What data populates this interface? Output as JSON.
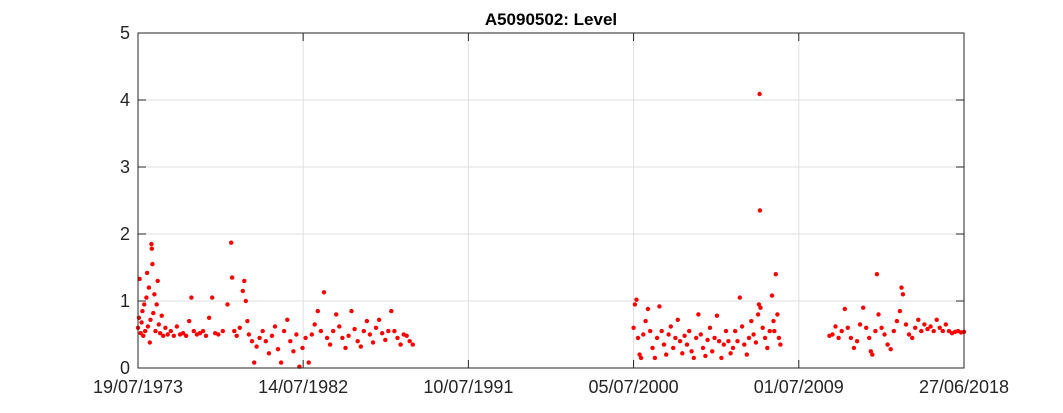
{
  "chart_data": {
    "type": "scatter",
    "title": "A5090502: Level",
    "xlabel": "",
    "ylabel": "",
    "x_ticks": [
      "19/07/1973",
      "14/07/1982",
      "10/07/1991",
      "05/07/2000",
      "01/07/2009",
      "27/06/2018"
    ],
    "x_range": [
      "19/07/1973",
      "27/06/2018"
    ],
    "ylim": [
      0,
      5
    ],
    "y_ticks": [
      0,
      1,
      2,
      3,
      4,
      5
    ],
    "grid": true,
    "marker_color": "#ff0000",
    "gridline_color": "#dfdfdf",
    "series": [
      {
        "points": [
          [
            "1973-07-19",
            0.6
          ],
          [
            "1973-08-05",
            0.75
          ],
          [
            "1973-08-20",
            1.33
          ],
          [
            "1973-09-10",
            0.52
          ],
          [
            "1973-09-28",
            0.68
          ],
          [
            "1973-10-15",
            0.85
          ],
          [
            "1973-11-01",
            0.48
          ],
          [
            "1973-11-20",
            0.95
          ],
          [
            "1973-12-10",
            0.55
          ],
          [
            "1974-01-01",
            1.05
          ],
          [
            "1974-01-15",
            1.42
          ],
          [
            "1974-02-01",
            0.62
          ],
          [
            "1974-02-20",
            1.2
          ],
          [
            "1974-03-10",
            0.38
          ],
          [
            "1974-03-25",
            0.72
          ],
          [
            "1974-04-12",
            1.85
          ],
          [
            "1974-04-20",
            1.78
          ],
          [
            "1974-05-01",
            1.55
          ],
          [
            "1974-05-20",
            0.82
          ],
          [
            "1974-06-10",
            1.1
          ],
          [
            "1974-07-01",
            0.55
          ],
          [
            "1974-07-25",
            0.95
          ],
          [
            "1974-08-15",
            1.3
          ],
          [
            "1974-09-05",
            0.65
          ],
          [
            "1974-10-01",
            0.52
          ],
          [
            "1974-11-01",
            0.78
          ],
          [
            "1974-12-01",
            0.48
          ],
          [
            "1975-01-15",
            0.6
          ],
          [
            "1975-03-01",
            0.5
          ],
          [
            "1975-05-01",
            0.55
          ],
          [
            "1975-07-01",
            0.48
          ],
          [
            "1975-09-01",
            0.62
          ],
          [
            "1975-11-01",
            0.5
          ],
          [
            "1976-01-01",
            0.52
          ],
          [
            "1976-03-01",
            0.48
          ],
          [
            "1976-05-01",
            0.7
          ],
          [
            "1976-06-15",
            1.05
          ],
          [
            "1976-08-01",
            0.55
          ],
          [
            "1976-10-01",
            0.5
          ],
          [
            "1976-12-01",
            0.52
          ],
          [
            "1977-02-01",
            0.55
          ],
          [
            "1977-04-01",
            0.48
          ],
          [
            "1977-06-01",
            0.75
          ],
          [
            "1977-08-01",
            1.05
          ],
          [
            "1977-10-01",
            0.52
          ],
          [
            "1977-12-01",
            0.5
          ],
          [
            "1978-03-01",
            0.55
          ],
          [
            "1978-06-01",
            0.95
          ],
          [
            "1978-08-15",
            1.87
          ],
          [
            "1978-09-01",
            1.35
          ],
          [
            "1978-10-15",
            0.55
          ],
          [
            "1978-12-01",
            0.48
          ],
          [
            "1979-02-01",
            0.6
          ],
          [
            "1979-04-01",
            1.15
          ],
          [
            "1979-05-01",
            1.3
          ],
          [
            "1979-06-01",
            1.0
          ],
          [
            "1979-07-01",
            0.7
          ],
          [
            "1979-08-01",
            0.5
          ],
          [
            "1979-10-01",
            0.4
          ],
          [
            "1979-11-15",
            0.08
          ],
          [
            "1980-01-01",
            0.32
          ],
          [
            "1980-03-01",
            0.45
          ],
          [
            "1980-05-01",
            0.55
          ],
          [
            "1980-07-01",
            0.4
          ],
          [
            "1980-09-01",
            0.22
          ],
          [
            "1980-11-01",
            0.48
          ],
          [
            "1981-01-01",
            0.62
          ],
          [
            "1981-03-01",
            0.28
          ],
          [
            "1981-05-01",
            0.08
          ],
          [
            "1981-07-01",
            0.55
          ],
          [
            "1981-09-01",
            0.72
          ],
          [
            "1981-11-01",
            0.4
          ],
          [
            "1982-01-01",
            0.25
          ],
          [
            "1982-03-01",
            0.5
          ],
          [
            "1982-05-01",
            0.02
          ],
          [
            "1982-07-01",
            0.3
          ],
          [
            "1982-09-01",
            0.45
          ],
          [
            "1982-11-01",
            0.08
          ],
          [
            "1983-01-01",
            0.5
          ],
          [
            "1983-03-01",
            0.65
          ],
          [
            "1983-05-01",
            0.85
          ],
          [
            "1983-07-01",
            0.55
          ],
          [
            "1983-09-01",
            1.13
          ],
          [
            "1983-11-01",
            0.45
          ],
          [
            "1984-01-01",
            0.35
          ],
          [
            "1984-03-01",
            0.55
          ],
          [
            "1984-05-01",
            0.8
          ],
          [
            "1984-07-01",
            0.62
          ],
          [
            "1984-09-01",
            0.45
          ],
          [
            "1984-11-01",
            0.3
          ],
          [
            "1985-01-01",
            0.48
          ],
          [
            "1985-03-01",
            0.85
          ],
          [
            "1985-05-01",
            0.58
          ],
          [
            "1985-07-01",
            0.4
          ],
          [
            "1985-09-01",
            0.32
          ],
          [
            "1985-11-01",
            0.55
          ],
          [
            "1986-01-01",
            0.7
          ],
          [
            "1986-03-01",
            0.5
          ],
          [
            "1986-05-01",
            0.38
          ],
          [
            "1986-07-01",
            0.6
          ],
          [
            "1986-09-01",
            0.72
          ],
          [
            "1986-11-01",
            0.52
          ],
          [
            "1987-01-01",
            0.42
          ],
          [
            "1987-03-01",
            0.55
          ],
          [
            "1987-05-01",
            0.85
          ],
          [
            "1987-07-01",
            0.55
          ],
          [
            "1987-09-01",
            0.45
          ],
          [
            "1987-11-01",
            0.35
          ],
          [
            "1988-01-01",
            0.5
          ],
          [
            "1988-03-01",
            0.48
          ],
          [
            "1988-05-01",
            0.4
          ],
          [
            "1988-07-01",
            0.35
          ],
          [
            "2000-07-05",
            0.6
          ],
          [
            "2000-08-01",
            0.95
          ],
          [
            "2000-09-01",
            1.02
          ],
          [
            "2000-10-01",
            0.45
          ],
          [
            "2000-11-01",
            0.2
          ],
          [
            "2000-12-01",
            0.15
          ],
          [
            "2001-01-15",
            0.5
          ],
          [
            "2001-03-01",
            0.7
          ],
          [
            "2001-04-15",
            0.88
          ],
          [
            "2001-06-01",
            0.55
          ],
          [
            "2001-07-15",
            0.3
          ],
          [
            "2001-09-01",
            0.15
          ],
          [
            "2001-10-15",
            0.45
          ],
          [
            "2001-12-01",
            0.92
          ],
          [
            "2002-01-15",
            0.55
          ],
          [
            "2002-03-01",
            0.35
          ],
          [
            "2002-04-15",
            0.2
          ],
          [
            "2002-06-01",
            0.5
          ],
          [
            "2002-07-15",
            0.62
          ],
          [
            "2002-09-01",
            0.3
          ],
          [
            "2002-10-15",
            0.45
          ],
          [
            "2002-12-01",
            0.72
          ],
          [
            "2003-01-15",
            0.4
          ],
          [
            "2003-03-01",
            0.22
          ],
          [
            "2003-04-15",
            0.48
          ],
          [
            "2003-06-01",
            0.35
          ],
          [
            "2003-07-15",
            0.55
          ],
          [
            "2003-09-01",
            0.25
          ],
          [
            "2003-10-15",
            0.15
          ],
          [
            "2003-12-01",
            0.45
          ],
          [
            "2004-01-15",
            0.8
          ],
          [
            "2004-03-01",
            0.5
          ],
          [
            "2004-04-15",
            0.3
          ],
          [
            "2004-06-01",
            0.18
          ],
          [
            "2004-07-15",
            0.42
          ],
          [
            "2004-09-01",
            0.6
          ],
          [
            "2004-10-15",
            0.25
          ],
          [
            "2004-12-01",
            0.45
          ],
          [
            "2005-01-15",
            0.78
          ],
          [
            "2005-03-01",
            0.4
          ],
          [
            "2005-04-15",
            0.15
          ],
          [
            "2005-06-01",
            0.35
          ],
          [
            "2005-07-15",
            0.55
          ],
          [
            "2005-09-01",
            0.4
          ],
          [
            "2005-10-15",
            0.22
          ],
          [
            "2005-12-01",
            0.3
          ],
          [
            "2006-01-15",
            0.55
          ],
          [
            "2006-03-01",
            0.4
          ],
          [
            "2006-04-15",
            1.05
          ],
          [
            "2006-06-01",
            0.62
          ],
          [
            "2006-07-15",
            0.35
          ],
          [
            "2006-09-01",
            0.2
          ],
          [
            "2006-10-15",
            0.45
          ],
          [
            "2006-12-01",
            0.7
          ],
          [
            "2007-01-15",
            0.5
          ],
          [
            "2007-03-01",
            0.38
          ],
          [
            "2007-04-15",
            0.8
          ],
          [
            "2007-05-01",
            0.95
          ],
          [
            "2007-05-15",
            4.09
          ],
          [
            "2007-05-20",
            2.35
          ],
          [
            "2007-06-01",
            0.9
          ],
          [
            "2007-07-15",
            0.6
          ],
          [
            "2007-09-01",
            0.45
          ],
          [
            "2007-10-15",
            0.3
          ],
          [
            "2007-12-01",
            0.55
          ],
          [
            "2008-01-15",
            1.08
          ],
          [
            "2008-02-15",
            0.7
          ],
          [
            "2008-03-01",
            0.55
          ],
          [
            "2008-04-01",
            1.4
          ],
          [
            "2008-05-01",
            0.8
          ],
          [
            "2008-06-01",
            0.45
          ],
          [
            "2008-07-01",
            0.35
          ],
          [
            "2011-03-01",
            0.48
          ],
          [
            "2011-05-01",
            0.5
          ],
          [
            "2011-07-01",
            0.62
          ],
          [
            "2011-09-01",
            0.45
          ],
          [
            "2011-11-01",
            0.55
          ],
          [
            "2012-01-01",
            0.88
          ],
          [
            "2012-03-01",
            0.6
          ],
          [
            "2012-05-01",
            0.45
          ],
          [
            "2012-07-01",
            0.3
          ],
          [
            "2012-09-01",
            0.4
          ],
          [
            "2012-11-01",
            0.65
          ],
          [
            "2013-01-01",
            0.9
          ],
          [
            "2013-03-01",
            0.6
          ],
          [
            "2013-05-01",
            0.45
          ],
          [
            "2013-06-01",
            0.25
          ],
          [
            "2013-07-01",
            0.2
          ],
          [
            "2013-09-01",
            0.55
          ],
          [
            "2013-10-01",
            1.4
          ],
          [
            "2013-11-01",
            0.8
          ],
          [
            "2014-01-01",
            0.6
          ],
          [
            "2014-03-01",
            0.5
          ],
          [
            "2014-05-01",
            0.35
          ],
          [
            "2014-07-01",
            0.28
          ],
          [
            "2014-09-01",
            0.55
          ],
          [
            "2014-11-01",
            0.7
          ],
          [
            "2015-01-01",
            0.85
          ],
          [
            "2015-02-01",
            1.2
          ],
          [
            "2015-03-01",
            1.1
          ],
          [
            "2015-05-01",
            0.65
          ],
          [
            "2015-07-01",
            0.5
          ],
          [
            "2015-09-01",
            0.45
          ],
          [
            "2015-11-01",
            0.6
          ],
          [
            "2016-01-01",
            0.72
          ],
          [
            "2016-03-01",
            0.55
          ],
          [
            "2016-05-01",
            0.65
          ],
          [
            "2016-07-01",
            0.58
          ],
          [
            "2016-09-01",
            0.62
          ],
          [
            "2016-11-01",
            0.55
          ],
          [
            "2017-01-01",
            0.72
          ],
          [
            "2017-03-01",
            0.6
          ],
          [
            "2017-05-01",
            0.55
          ],
          [
            "2017-07-01",
            0.65
          ],
          [
            "2017-09-01",
            0.55
          ],
          [
            "2017-11-01",
            0.52
          ],
          [
            "2018-01-01",
            0.54
          ],
          [
            "2018-03-01",
            0.55
          ],
          [
            "2018-05-01",
            0.53
          ],
          [
            "2018-06-27",
            0.54
          ]
        ]
      }
    ]
  }
}
